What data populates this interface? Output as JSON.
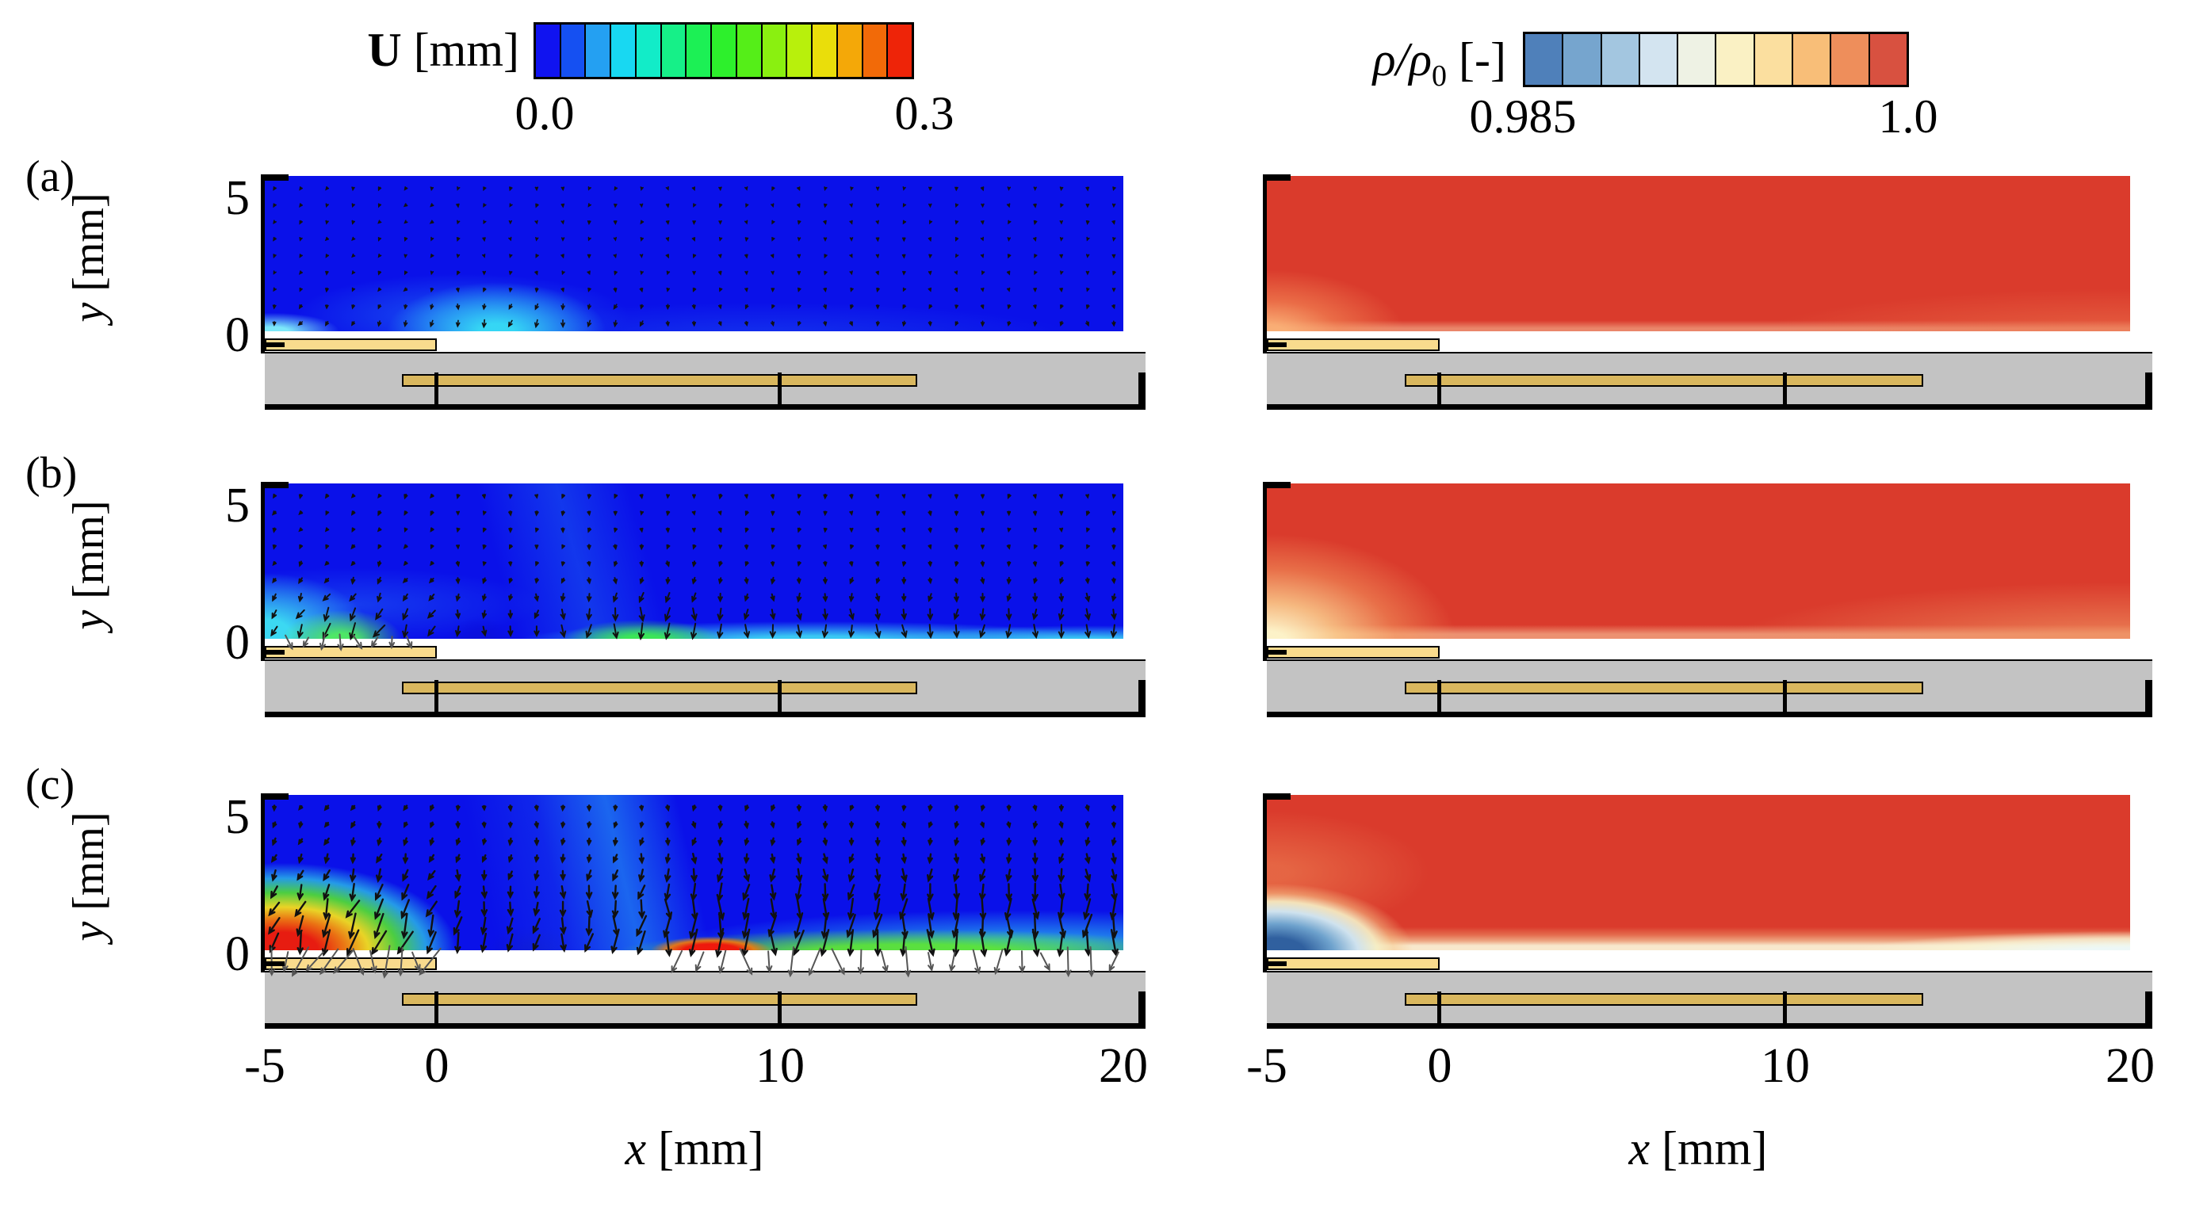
{
  "figure": {
    "panel_labels": [
      "(a)",
      "(b)",
      "(c)"
    ],
    "colorbars": {
      "velocity": {
        "title_symbol": "U",
        "title_unit": " [mm]",
        "min_label": "0.0",
        "max_label": "0.3",
        "segment_colors": [
          "#1013f0",
          "#1550f2",
          "#24a0f2",
          "#18d8f2",
          "#12ecc8",
          "#16f088",
          "#1cf055",
          "#2df02c",
          "#55ee18",
          "#8af010",
          "#b8f00c",
          "#eade0a",
          "#f4a808",
          "#f26a08",
          "#ee2408"
        ]
      },
      "density": {
        "title_symbol": "ρ/ρ",
        "title_sub": "0",
        "title_unit": " [-]",
        "min_label": "0.985",
        "max_label": "1.0",
        "segment_colors": [
          "#4f80ba",
          "#76a5ce",
          "#a3c6e0",
          "#d3e4f0",
          "#eef2e4",
          "#faf1c4",
          "#fbdf9f",
          "#f8be78",
          "#ee8e5b",
          "#d85140"
        ]
      }
    },
    "axes": {
      "x": {
        "label_symbol": "x",
        "label_unit": " [mm]",
        "ticks": [
          "-5",
          "0",
          "10",
          "20"
        ],
        "range": [
          -5,
          20
        ]
      },
      "y": {
        "label_symbol": "y",
        "label_unit": " [mm]",
        "ticks": [
          "5",
          "0"
        ],
        "range": [
          0,
          5
        ]
      }
    }
  },
  "chart_data": [
    {
      "type": "heatmap",
      "quantity": "velocity magnitude with vector arrows",
      "colorbar_title": "U [mm]",
      "colorbar_range": [
        0.0,
        0.3
      ],
      "colorbar_tick_labels": [
        "0.0",
        "0.3"
      ],
      "colormap": "rainbow, 15 discrete bands",
      "x_axis": {
        "label": "x [mm]",
        "range": [
          -5,
          20
        ],
        "ticks": [
          -5,
          0,
          10,
          20
        ]
      },
      "y_axis": {
        "label": "y [mm]",
        "range": [
          0,
          5
        ],
        "ticks": [
          5,
          0
        ]
      },
      "vector_overlay": {
        "grid_cols": 33,
        "grid_rows": 9,
        "direction": "predominantly downward toward the wall"
      },
      "panels": [
        {
          "label": "(a)",
          "description": "weak nearly uniform low velocity (deep blue ~0); faint cyan patch near wall around x = 0-5 mm; tiny vectors"
        },
        {
          "label": "(b)",
          "description": "moderate downward flow; cyan layer along wall, green pockets near wall at x = -4 to -1 mm and x = 5-8 mm; small grey vectors dip below surface above exposed electrode"
        },
        {
          "label": "(c)",
          "description": "strong wall-directed jet; red high-velocity cores near wall at x = -4 to 0 mm and x = 7-9 mm, yellow/green band along wall thickening downstream, cyan layer rising toward x = 20 mm; long vectors impinge and continue below surface (grey) for x < 0 and x > 7 mm"
        }
      ],
      "geometry": {
        "exposed_electrode_x_mm": [
          -5,
          0
        ],
        "embedded_electrode_x_mm": [
          -1,
          14
        ],
        "substrate": "grey dielectric slab below y = 0 with tick marks at x = 0 and x = 10"
      }
    },
    {
      "type": "heatmap",
      "quantity": "normalized gas density",
      "colorbar_title": "ρ/ρ0 [-]",
      "colorbar_range": [
        0.985,
        1.0
      ],
      "colorbar_tick_labels": [
        "0.985",
        "1.0"
      ],
      "colormap": "blue-white-red diverging, 10 discrete bands",
      "x_axis": {
        "label": "x [mm]",
        "range": [
          -5,
          20
        ],
        "ticks": [
          -5,
          0,
          10,
          20
        ]
      },
      "y_axis": {
        "label": "y [mm]",
        "range": [
          0,
          5
        ],
        "ticks": [
          5,
          0
        ]
      },
      "panels": [
        {
          "label": "(a)",
          "description": "near-uniform density ~1.0 (red); mild pale-orange depletion wedge above exposed electrode at bottom-left; faint lighter diagonal band toward bottom-right"
        },
        {
          "label": "(b)",
          "description": "pale yellow-white low-density wedge above exposed electrode (x = -5 to 0 mm); orange depleted boundary layer spreading diagonally toward bottom-right"
        },
        {
          "label": "(c)",
          "description": "strong low-density blue bubble (ρ/ρ0 ≈ 0.985) above exposed electrode; thin white-yellow depleted layer along wall thickening toward x = 20 mm"
        }
      ],
      "geometry": {
        "exposed_electrode_x_mm": [
          -5,
          0
        ],
        "embedded_electrode_x_mm": [
          -1,
          14
        ],
        "substrate": "grey dielectric slab below y = 0 with tick marks at x = 0 and x = 10"
      }
    }
  ]
}
